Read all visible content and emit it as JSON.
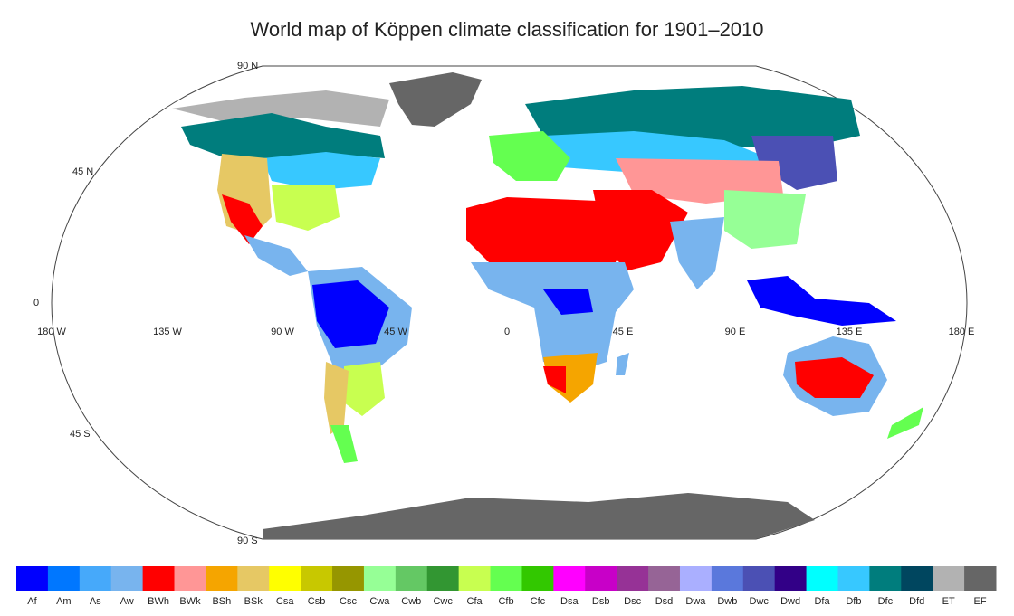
{
  "title": "World map of Köppen climate classification for 1901–2010",
  "map": {
    "latitude_labels": [
      "90 N",
      "45 N",
      "0",
      "45 S",
      "90 S"
    ],
    "longitude_labels": [
      "180 W",
      "135 W",
      "90 W",
      "45 W",
      "0",
      "45 E",
      "90 E",
      "135 E",
      "180 E"
    ]
  },
  "legend": [
    {
      "code": "Af",
      "color": "#0000fe"
    },
    {
      "code": "Am",
      "color": "#0077ff"
    },
    {
      "code": "As",
      "color": "#46a9fa"
    },
    {
      "code": "Aw",
      "color": "#78b4ee"
    },
    {
      "code": "BWh",
      "color": "#ff0000"
    },
    {
      "code": "BWk",
      "color": "#ff9696"
    },
    {
      "code": "BSh",
      "color": "#f5a500"
    },
    {
      "code": "BSk",
      "color": "#e6c864"
    },
    {
      "code": "Csa",
      "color": "#ffff00"
    },
    {
      "code": "Csb",
      "color": "#c8c800"
    },
    {
      "code": "Csc",
      "color": "#969600"
    },
    {
      "code": "Cwa",
      "color": "#96ff96"
    },
    {
      "code": "Cwb",
      "color": "#64c864"
    },
    {
      "code": "Cwc",
      "color": "#329632"
    },
    {
      "code": "Cfa",
      "color": "#c8ff50"
    },
    {
      "code": "Cfb",
      "color": "#64ff50"
    },
    {
      "code": "Cfc",
      "color": "#32c800"
    },
    {
      "code": "Dsa",
      "color": "#ff00ff"
    },
    {
      "code": "Dsb",
      "color": "#c800c8"
    },
    {
      "code": "Dsc",
      "color": "#963296"
    },
    {
      "code": "Dsd",
      "color": "#966496"
    },
    {
      "code": "Dwa",
      "color": "#aaafff"
    },
    {
      "code": "Dwb",
      "color": "#5a78dc"
    },
    {
      "code": "Dwc",
      "color": "#4b50b4"
    },
    {
      "code": "Dwd",
      "color": "#320087"
    },
    {
      "code": "Dfa",
      "color": "#00ffff"
    },
    {
      "code": "Dfb",
      "color": "#37c8ff"
    },
    {
      "code": "Dfc",
      "color": "#007d7d"
    },
    {
      "code": "Dfd",
      "color": "#00465f"
    },
    {
      "code": "ET",
      "color": "#b2b2b2"
    },
    {
      "code": "EF",
      "color": "#666666"
    }
  ]
}
